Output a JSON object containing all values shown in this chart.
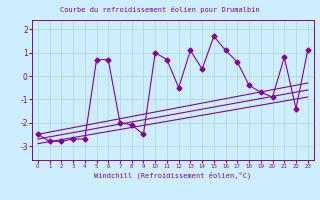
{
  "title": "Courbe du refroidissement éolien pour Drumalbin",
  "xlabel": "Windchill (Refroidissement éolien,°C)",
  "background_color": "#cceeff",
  "grid_color": "#b0d8cc",
  "line_color": "#880099",
  "xlim": [
    -0.5,
    23.5
  ],
  "ylim": [
    -3.6,
    2.4
  ],
  "yticks": [
    -3,
    -2,
    -1,
    0,
    1,
    2
  ],
  "xticks": [
    0,
    1,
    2,
    3,
    4,
    5,
    6,
    7,
    8,
    9,
    10,
    11,
    12,
    13,
    14,
    15,
    16,
    17,
    18,
    19,
    20,
    21,
    22,
    23
  ],
  "series1_x": [
    0,
    1,
    2,
    3,
    4,
    5,
    6,
    7,
    8,
    9,
    10,
    11,
    12,
    13,
    14,
    15,
    16,
    17,
    18,
    19,
    20,
    21,
    22,
    23
  ],
  "series1_y": [
    -2.5,
    -2.8,
    -2.8,
    -2.7,
    -2.7,
    0.7,
    0.7,
    -2.0,
    -2.1,
    -2.5,
    1.0,
    0.7,
    -0.5,
    1.1,
    0.3,
    1.7,
    1.1,
    0.6,
    -0.4,
    -0.7,
    -0.9,
    0.8,
    -1.4,
    1.1
  ],
  "series2_x": [
    0,
    23
  ],
  "series2_y": [
    -2.5,
    -0.3
  ],
  "series3_x": [
    0,
    23
  ],
  "series3_y": [
    -2.9,
    -0.9
  ],
  "series4_x": [
    0,
    23
  ],
  "series4_y": [
    -2.7,
    -0.6
  ]
}
